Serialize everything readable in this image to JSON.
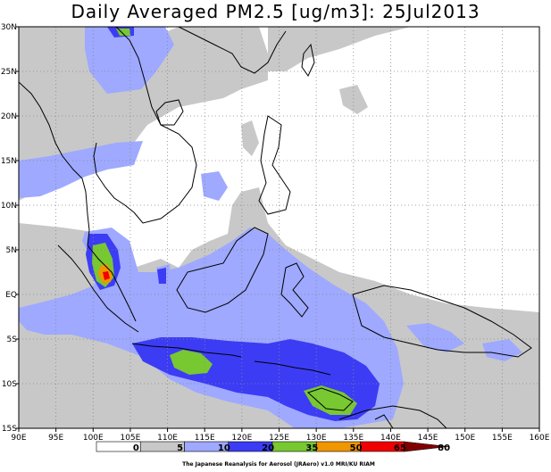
{
  "title": "Daily Averaged PM2.5 [ug/m3]: 25Jul2013",
  "credit": "The Japanese Reanalysis for Aerosol (JRAero) v1.0 MRI/KU RIAM",
  "lon_ticks": [
    "90E",
    "95E",
    "100E",
    "105E",
    "110E",
    "115E",
    "120E",
    "125E",
    "130E",
    "135E",
    "140E",
    "145E",
    "150E",
    "155E",
    "160E"
  ],
  "lat_ticks": [
    "30N",
    "25N",
    "20N",
    "15N",
    "10N",
    "5N",
    "EQ",
    "5S",
    "10S",
    "15S"
  ],
  "colorbar": {
    "labels": [
      "0",
      "5",
      "10",
      "20",
      "35",
      "50",
      "65",
      "80"
    ],
    "colors": [
      "#ffffff",
      "#c8c8c8",
      "#9ea9ff",
      "#3c3cf5",
      "#78c832",
      "#f09600",
      "#f00000",
      "#800000"
    ]
  },
  "colors": {
    "gray": "#c8c8c8",
    "light_blue": "#9ea9ff",
    "blue": "#3c3cf5",
    "green": "#78c832",
    "orange": "#f09600",
    "red": "#f00000",
    "dark_red": "#800000"
  }
}
